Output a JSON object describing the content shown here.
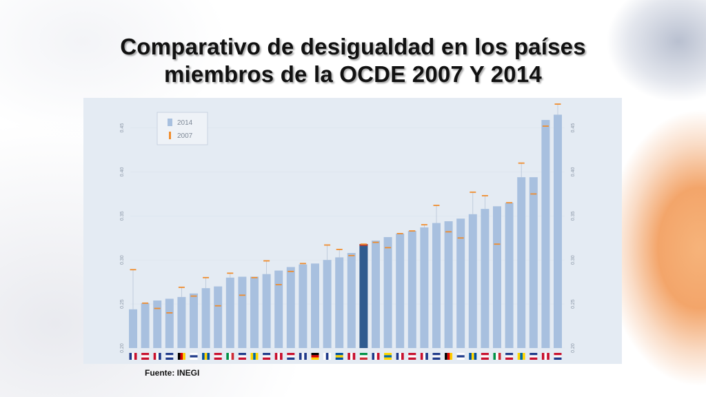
{
  "slide": {
    "title": "Comparativo de desigualdad en los países miembros de la OCDE 2007 Y 2014",
    "source": "Fuente: INEGI"
  },
  "colors": {
    "bar": "#a8c0df",
    "highlight_bar": "#2f5b8f",
    "marker_2007": "#f08c2c",
    "chart_bg": "#e4ebf3"
  },
  "chart_data": {
    "type": "bar",
    "title": "",
    "xlabel": "",
    "ylabel": "",
    "ylim": [
      0.2,
      0.47
    ],
    "yticks": [
      "0.20",
      "0.25",
      "0.30",
      "0.35",
      "0.40",
      "0.45"
    ],
    "grid": true,
    "legend_position": "top-left",
    "series": [
      {
        "name": "2014",
        "values": [
          0.244,
          0.251,
          0.254,
          0.256,
          0.258,
          0.262,
          0.268,
          0.27,
          0.28,
          0.281,
          0.281,
          0.284,
          0.288,
          0.292,
          0.295,
          0.296,
          0.3,
          0.303,
          0.308,
          0.318,
          0.322,
          0.326,
          0.33,
          0.333,
          0.337,
          0.342,
          0.344,
          0.347,
          0.352,
          0.358,
          0.361,
          0.365,
          0.394,
          0.394,
          0.459,
          0.465
        ]
      },
      {
        "name": "2007",
        "values": [
          0.289,
          0.251,
          0.245,
          0.24,
          0.269,
          0.259,
          0.28,
          0.248,
          0.285,
          0.26,
          0.28,
          0.299,
          0.272,
          0.287,
          0.296,
          null,
          0.317,
          0.312,
          0.305,
          0.318,
          0.32,
          0.314,
          0.33,
          0.333,
          0.34,
          0.362,
          0.332,
          0.325,
          0.377,
          0.373,
          0.318,
          0.365,
          0.41,
          0.375,
          0.452,
          0.477
        ]
      }
    ],
    "highlight_index": 19
  }
}
